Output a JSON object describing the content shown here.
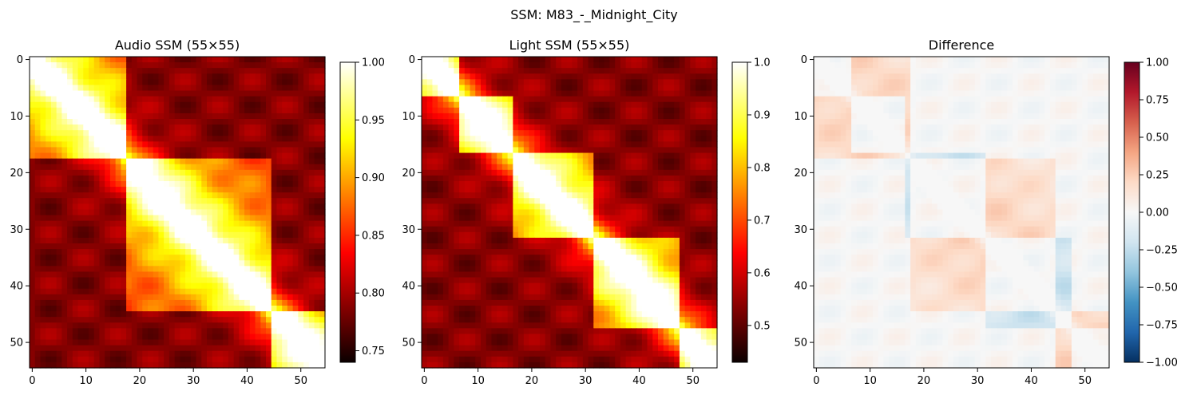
{
  "suptitle": "SSM: M83_-_Midnight_City",
  "chart_data": [
    {
      "type": "heatmap",
      "title": "Audio SSM (55×55)",
      "rows": 55,
      "cols": 55,
      "colormap": "hot",
      "vmin": 0.74,
      "vmax": 1.0,
      "xticks": [
        "0",
        "10",
        "20",
        "30",
        "40",
        "50"
      ],
      "yticks": [
        "0",
        "10",
        "20",
        "30",
        "40",
        "50"
      ],
      "colorbar_ticks": [
        {
          "value": 0.75,
          "label": "0.75"
        },
        {
          "value": 0.8,
          "label": "0.80"
        },
        {
          "value": 0.85,
          "label": "0.85"
        },
        {
          "value": 0.9,
          "label": "0.90"
        },
        {
          "value": 0.95,
          "label": "0.95"
        },
        {
          "value": 1.0,
          "label": "1.00"
        }
      ],
      "segments": [
        0,
        18,
        45,
        55
      ]
    },
    {
      "type": "heatmap",
      "title": "Light SSM (55×55)",
      "rows": 55,
      "cols": 55,
      "colormap": "hot",
      "vmin": 0.43,
      "vmax": 1.0,
      "xticks": [
        "0",
        "10",
        "20",
        "30",
        "40",
        "50"
      ],
      "yticks": [
        "0",
        "10",
        "20",
        "30",
        "40",
        "50"
      ],
      "colorbar_ticks": [
        {
          "value": 0.5,
          "label": "0.5"
        },
        {
          "value": 0.6,
          "label": "0.6"
        },
        {
          "value": 0.7,
          "label": "0.7"
        },
        {
          "value": 0.8,
          "label": "0.8"
        },
        {
          "value": 0.9,
          "label": "0.9"
        },
        {
          "value": 1.0,
          "label": "1.0"
        }
      ],
      "segments": [
        0,
        7,
        17,
        32,
        48,
        55
      ]
    },
    {
      "type": "heatmap",
      "title": "Difference",
      "rows": 55,
      "cols": 55,
      "colormap": "RdBu_r",
      "vmin": -1.0,
      "vmax": 1.0,
      "xticks": [
        "0",
        "10",
        "20",
        "30",
        "40",
        "50"
      ],
      "yticks": [
        "0",
        "10",
        "20",
        "30",
        "40",
        "50"
      ],
      "colorbar_ticks": [
        {
          "value": -1.0,
          "label": "−1.00"
        },
        {
          "value": -0.75,
          "label": "−0.75"
        },
        {
          "value": -0.5,
          "label": "−0.50"
        },
        {
          "value": -0.25,
          "label": "−0.25"
        },
        {
          "value": 0.0,
          "label": "0.00"
        },
        {
          "value": 0.25,
          "label": "0.25"
        },
        {
          "value": 0.5,
          "label": "0.50"
        },
        {
          "value": 0.75,
          "label": "0.75"
        },
        {
          "value": 1.0,
          "label": "1.00"
        }
      ]
    }
  ]
}
